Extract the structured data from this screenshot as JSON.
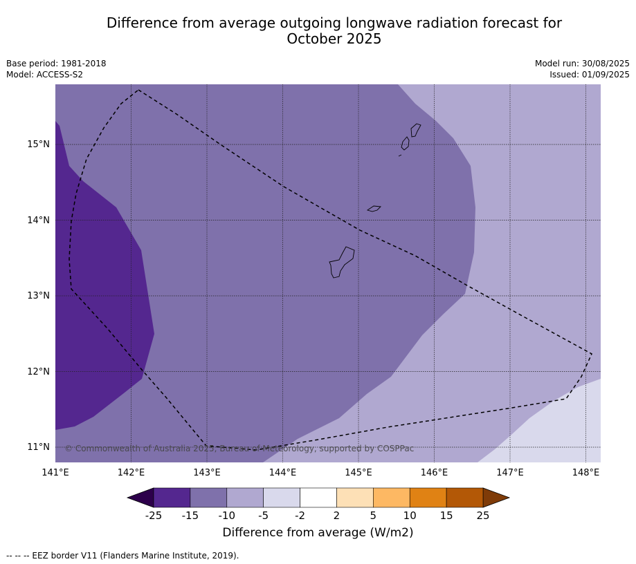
{
  "title_line1": "Difference from average outgoing longwave radiation forecast for",
  "title_line2": "October 2025",
  "base_period": "Base period: 1981-2018",
  "model": "Model: ACCESS-S2",
  "model_run": "Model run: 30/08/2025",
  "issued": "Issued: 01/09/2025",
  "copyright": "© Commonwealth of Australia 2025, Bureau of Meteorology, supported by COSPPac",
  "lon_labels": [
    "141°E",
    "142°E",
    "143°E",
    "144°E",
    "145°E",
    "146°E",
    "147°E",
    "148°E"
  ],
  "lat_labels": [
    "15°N",
    "14°N",
    "13°N",
    "12°N",
    "11°N"
  ],
  "colorbar": {
    "ticks": [
      "-25",
      "-15",
      "-10",
      "-5",
      "-2",
      "2",
      "5",
      "10",
      "15",
      "25"
    ],
    "label": "Difference from average (W/m2)",
    "colors": [
      "#54278f",
      "#7f71ab",
      "#b0a8d0",
      "#d9d9ec",
      "#ffffff",
      "#fde0b6",
      "#fdb863",
      "#e08214",
      "#b35806"
    ],
    "low_extend_color": "#2d004b",
    "high_extend_color": "#7f3b08"
  },
  "footnote": "--  --  -- EEZ border V11 (Flanders Marine Institute, 2019)."
}
